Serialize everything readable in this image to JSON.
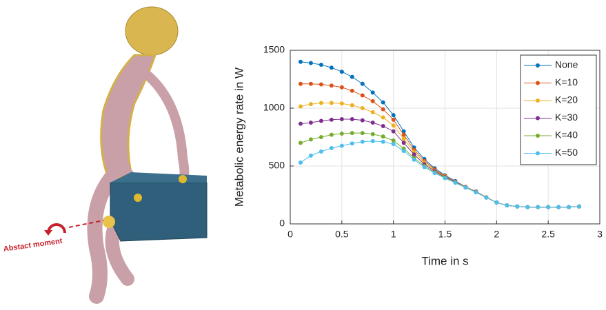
{
  "illustration": {
    "annotation": "Abstact moment"
  },
  "chart_data": {
    "type": "line",
    "x_label": "Time in s",
    "y_label": "Metabolic energy rate in W",
    "x": [
      0.1,
      0.2,
      0.3,
      0.4,
      0.5,
      0.6,
      0.7,
      0.8,
      0.9,
      1.0,
      1.1,
      1.2,
      1.3,
      1.4,
      1.5,
      1.6,
      1.7,
      1.8,
      1.9,
      2.0,
      2.1,
      2.2,
      2.3,
      2.4,
      2.5,
      2.6,
      2.7,
      2.8
    ],
    "series": [
      {
        "name": "None",
        "color": "#0072BD",
        "values": [
          1400,
          1390,
          1375,
          1350,
          1315,
          1270,
          1210,
          1135,
          1050,
          940,
          800,
          660,
          560,
          480,
          420,
          370,
          320,
          280,
          230,
          185,
          160,
          150,
          145,
          145,
          145,
          145,
          145,
          150
        ]
      },
      {
        "name": "K=10",
        "color": "#D95319",
        "values": [
          1210,
          1210,
          1205,
          1195,
          1180,
          1150,
          1110,
          1060,
          990,
          900,
          770,
          640,
          545,
          470,
          415,
          365,
          320,
          278,
          230,
          185,
          160,
          150,
          145,
          145,
          145,
          145,
          145,
          150
        ]
      },
      {
        "name": "K=20",
        "color": "#EDB120",
        "values": [
          1015,
          1035,
          1045,
          1045,
          1040,
          1025,
          1000,
          965,
          920,
          850,
          735,
          620,
          530,
          460,
          410,
          362,
          318,
          276,
          229,
          185,
          160,
          150,
          145,
          145,
          145,
          145,
          145,
          150
        ]
      },
      {
        "name": "K=30",
        "color": "#7E2F8E",
        "values": [
          865,
          875,
          890,
          900,
          905,
          905,
          895,
          875,
          845,
          800,
          700,
          600,
          515,
          455,
          405,
          360,
          316,
          275,
          228,
          185,
          160,
          150,
          145,
          145,
          145,
          145,
          145,
          150
        ]
      },
      {
        "name": "K=40",
        "color": "#77AC30",
        "values": [
          700,
          730,
          750,
          770,
          780,
          785,
          785,
          775,
          755,
          720,
          650,
          570,
          500,
          445,
          400,
          357,
          315,
          274,
          228,
          185,
          160,
          150,
          145,
          145,
          145,
          145,
          145,
          150
        ]
      },
      {
        "name": "K=50",
        "color": "#4DBEEE",
        "values": [
          530,
          590,
          625,
          655,
          675,
          695,
          710,
          715,
          710,
          690,
          630,
          555,
          490,
          440,
          395,
          355,
          314,
          273,
          227,
          185,
          160,
          150,
          145,
          145,
          145,
          145,
          145,
          150
        ]
      }
    ],
    "xlim": [
      0,
      3
    ],
    "xticks": [
      0,
      0.5,
      1,
      1.5,
      2,
      2.5,
      3
    ],
    "ylim": [
      0,
      1500
    ],
    "yticks": [
      0,
      500,
      1000,
      1500
    ],
    "grid": true,
    "legend": "top-right"
  }
}
